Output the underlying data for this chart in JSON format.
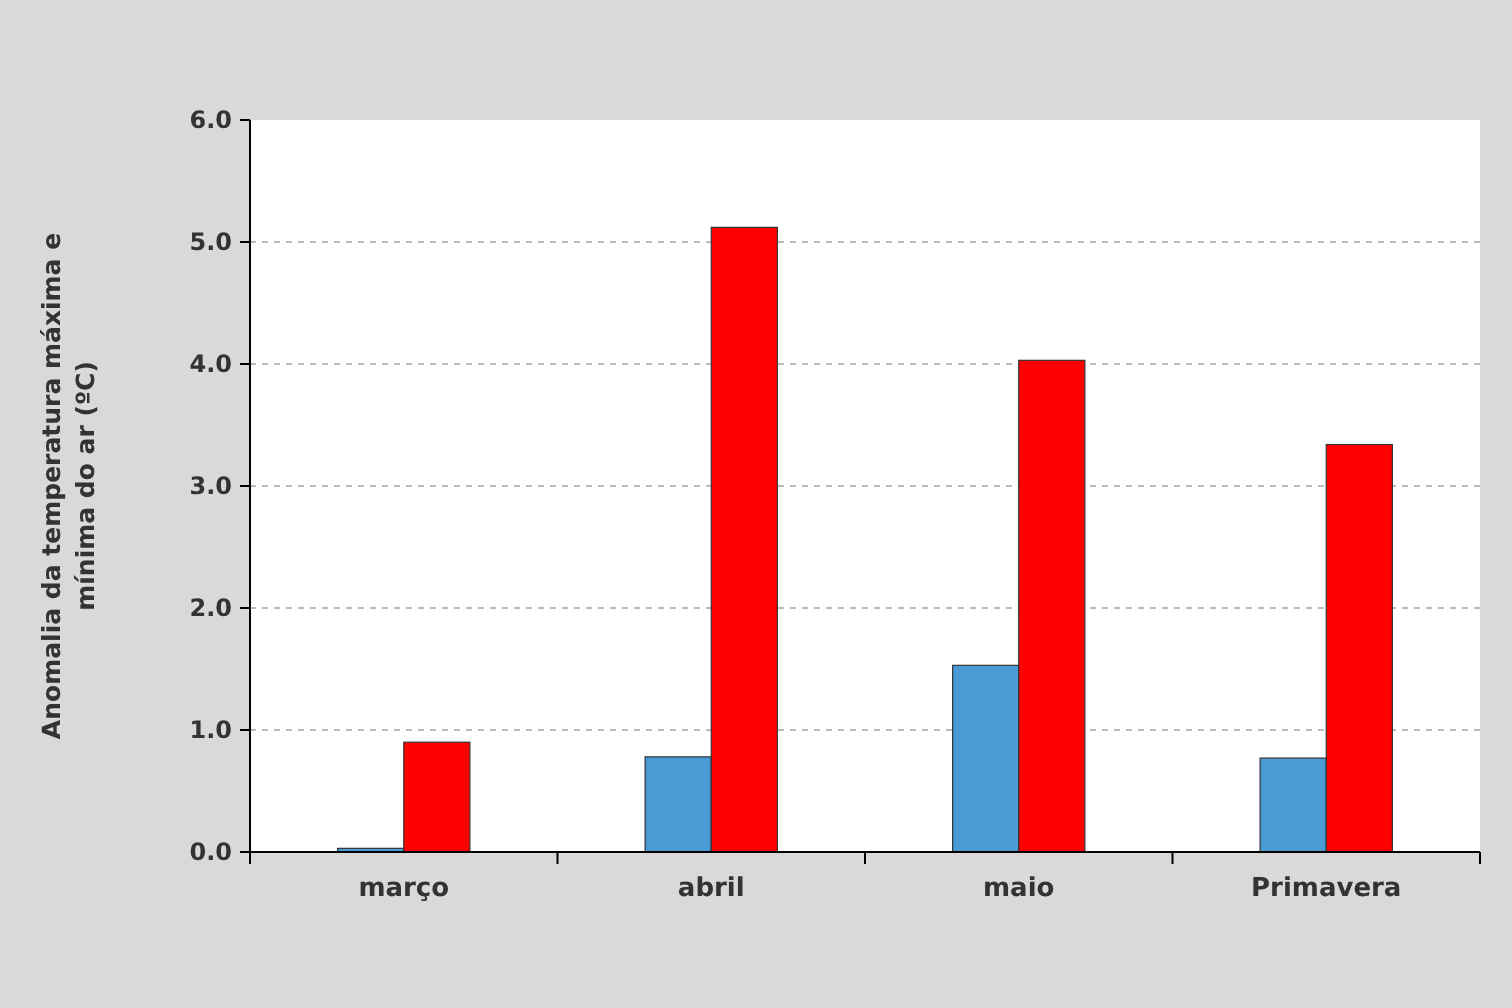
{
  "chart_data": {
    "type": "bar",
    "ylabel": "Anomalia da temperatura máxima e mínima do ar (ºC)",
    "categories": [
      "março",
      "abril",
      "maio",
      "Primavera"
    ],
    "series": [
      {
        "color": "#4a9ad6",
        "values": [
          0.03,
          0.78,
          1.53,
          0.77
        ]
      },
      {
        "color": "#ff0000",
        "values": [
          0.9,
          5.12,
          4.03,
          3.34
        ]
      }
    ],
    "ylim": [
      0,
      6
    ],
    "yticks": [
      {
        "value": 0,
        "label": "0.0"
      },
      {
        "value": 1,
        "label": "1.0"
      },
      {
        "value": 2,
        "label": "2.0"
      },
      {
        "value": 3,
        "label": "3.0"
      },
      {
        "value": 4,
        "label": "4.0"
      },
      {
        "value": 5,
        "label": "5.0"
      },
      {
        "value": 6,
        "label": "6.0"
      }
    ],
    "grid": "y"
  }
}
